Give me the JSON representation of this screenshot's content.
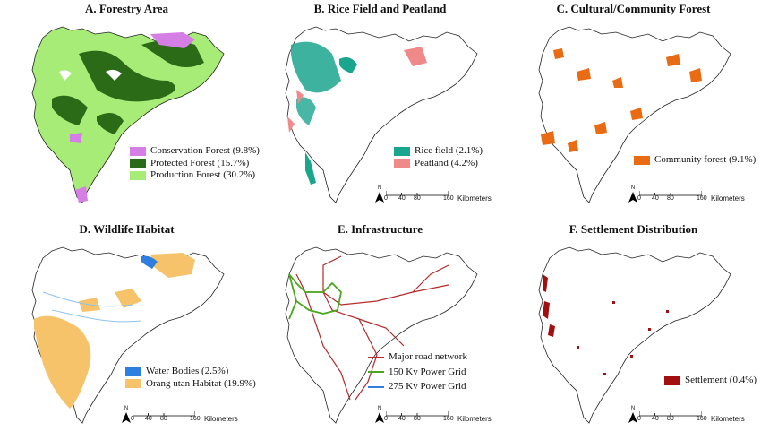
{
  "panels": [
    {
      "id": "A",
      "title": "A. Forestry Area",
      "legend": [
        {
          "label": "Conservation Forest (9.8%)",
          "color": "#d57ee6",
          "kind": "patch"
        },
        {
          "label": "Protected Forest (15.7%)",
          "color": "#2b6a17",
          "kind": "patch"
        },
        {
          "label": "Production Forest (30.2%)",
          "color": "#a8ec78",
          "kind": "patch"
        }
      ],
      "scale": null
    },
    {
      "id": "B",
      "title": "B. Rice Field and Peatland",
      "legend": [
        {
          "label": "Rice field (2.1%)",
          "color": "#1aa58e",
          "kind": "patch"
        },
        {
          "label": "Peatland (4.2%)",
          "color": "#f08a8a",
          "kind": "patch"
        }
      ],
      "scale": {
        "ticks": [
          "0",
          "40",
          "80",
          "160"
        ],
        "unit": "Kilometers",
        "north": "N"
      }
    },
    {
      "id": "C",
      "title": "C. Cultural/Community Forest",
      "legend": [
        {
          "label": "Community forest (9.1%)",
          "color": "#e96b13",
          "kind": "patch"
        }
      ],
      "scale": {
        "ticks": [
          "0",
          "40",
          "80",
          "160"
        ],
        "unit": "Kilometers",
        "north": "N"
      }
    },
    {
      "id": "D",
      "title": "D. Wildlife Habitat",
      "legend": [
        {
          "label": "Water Bodies (2.5%)",
          "color": "#2f7fe0",
          "kind": "patch"
        },
        {
          "label": "Orang utan Habitat (19.9%)",
          "color": "#f6c36b",
          "kind": "patch"
        }
      ],
      "scale": {
        "ticks": [
          "0",
          "40",
          "80",
          "160"
        ],
        "unit": "Kilometers",
        "north": "N"
      }
    },
    {
      "id": "E",
      "title": "E. Infrastructure",
      "legend": [
        {
          "label": "Major road network",
          "color": "#b52a2a",
          "kind": "line"
        },
        {
          "label": "150 Kv Power Grid",
          "color": "#4aa71c",
          "kind": "line"
        },
        {
          "label": "275 Kv Power Grid",
          "color": "#2f7fe0",
          "kind": "line"
        }
      ],
      "scale": {
        "ticks": [
          "0",
          "40",
          "80",
          "160"
        ],
        "unit": "Kilometers",
        "north": "N"
      }
    },
    {
      "id": "F",
      "title": "F. Settlement Distribution",
      "legend": [
        {
          "label": "Settlement (0.4%)",
          "color": "#a30f0f",
          "kind": "patch"
        }
      ],
      "scale": {
        "ticks": [
          "0",
          "40",
          "80",
          "160"
        ],
        "unit": "Kilometers",
        "north": "N"
      }
    }
  ]
}
